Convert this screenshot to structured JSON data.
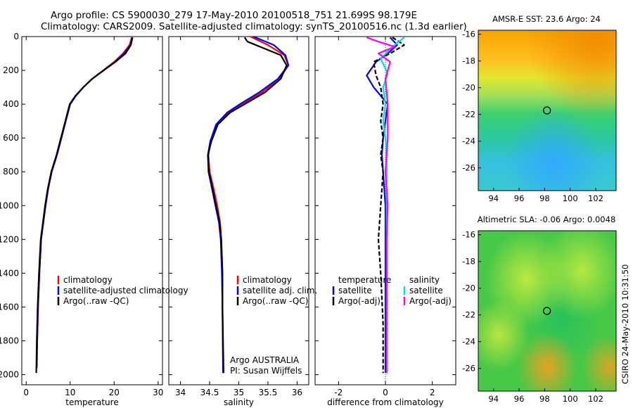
{
  "header": {
    "line1": "Argo profile: CS 5900030_279 17-May-2010 20100518_751 21.699S 98.179E",
    "line2": "Climatology: CARS2009. Satellite-adjusted climatology: synTS_20100516.nc (1.3d earlier)"
  },
  "colors": {
    "climatology": "#ff0000",
    "satellite": "#0000ff",
    "argo": "#000000",
    "sal_satellite": "#00e0e0",
    "sal_argo": "#ff00ff"
  },
  "chart_data": [
    {
      "type": "line",
      "xlabel": "temperature",
      "xlim": [
        -1,
        31
      ],
      "ylim": [
        2060,
        0
      ],
      "xticks": [
        "0",
        "10",
        "20",
        "30"
      ],
      "xtick_values": [
        0,
        10,
        20,
        30
      ],
      "yticks": [
        "0",
        "200",
        "400",
        "600",
        "800",
        "1000",
        "1200",
        "1400",
        "1600",
        "1800",
        "2000"
      ],
      "ytick_values": [
        0,
        200,
        400,
        600,
        800,
        1000,
        1200,
        1400,
        1600,
        1800,
        2000
      ],
      "legend": [
        "climatology",
        "satellite-adjusted climatology",
        "Argo(..raw -QC)"
      ],
      "series": [
        {
          "name": "climatology",
          "color": "#ff0000",
          "x": [
            24.0,
            23.5,
            22.0,
            20.0,
            17.5,
            15.0,
            13.0,
            11.3,
            10.0,
            9.0,
            8.0,
            7.0,
            5.8,
            5.0,
            4.4,
            3.9,
            3.4,
            3.0,
            2.7,
            2.5,
            2.4
          ],
          "y": [
            5,
            50,
            100,
            150,
            200,
            250,
            300,
            350,
            400,
            500,
            600,
            700,
            800,
            900,
            1000,
            1100,
            1200,
            1400,
            1600,
            1800,
            1950
          ]
        },
        {
          "name": "satellite-adjusted climatology",
          "color": "#0000ff",
          "x": [
            24.1,
            23.7,
            22.3,
            20.2,
            17.6,
            15.0,
            13.0,
            11.3,
            10.0,
            9.0,
            8.0,
            7.0,
            5.8,
            5.0,
            4.4,
            3.9,
            3.4,
            3.0,
            2.7,
            2.5,
            2.4
          ],
          "y": [
            5,
            50,
            100,
            150,
            200,
            250,
            300,
            350,
            400,
            500,
            600,
            700,
            800,
            900,
            1000,
            1100,
            1200,
            1400,
            1600,
            1800,
            1960
          ]
        },
        {
          "name": "Argo(..raw -QC)",
          "color": "#000000",
          "x": [
            24.2,
            23.8,
            22.6,
            20.3,
            17.6,
            15.0,
            13.0,
            11.2,
            9.9,
            8.9,
            7.9,
            6.9,
            5.7,
            4.9,
            4.3,
            3.8,
            3.3,
            2.9,
            2.6,
            2.4,
            2.3
          ],
          "y": [
            5,
            50,
            100,
            150,
            200,
            250,
            300,
            350,
            400,
            500,
            600,
            700,
            800,
            900,
            1000,
            1100,
            1200,
            1400,
            1600,
            1800,
            1990
          ]
        }
      ]
    },
    {
      "type": "line",
      "xlabel": "salinity",
      "xlim": [
        33.8,
        36.2
      ],
      "ylim": [
        2060,
        0
      ],
      "xticks": [
        "34",
        "34.5",
        "35",
        "35.5",
        "36"
      ],
      "xtick_values": [
        34,
        34.5,
        35,
        35.5,
        36
      ],
      "legend": [
        "climatology",
        "satellite adj. clim.",
        "Argo(..raw -QC)"
      ],
      "annotation": [
        "Argo AUSTRALIA",
        "PI: Susan Wijffels"
      ],
      "series": [
        {
          "name": "climatology",
          "color": "#ff0000",
          "x": [
            35.2,
            35.5,
            35.78,
            35.85,
            35.7,
            35.4,
            35.05,
            34.82,
            34.62,
            34.52,
            34.48,
            34.5,
            34.57,
            34.63,
            34.68,
            34.7,
            34.72,
            34.72,
            34.73
          ],
          "y": [
            0,
            50,
            110,
            170,
            250,
            330,
            400,
            450,
            520,
            620,
            700,
            800,
            900,
            1000,
            1100,
            1200,
            1400,
            1600,
            1880
          ]
        },
        {
          "name": "satellite adj. clim.",
          "color": "#0000ff",
          "x": [
            35.25,
            35.6,
            35.8,
            35.85,
            35.67,
            35.35,
            35.02,
            34.8,
            34.61,
            34.51,
            34.47,
            34.48,
            34.54,
            34.6,
            34.66,
            34.69,
            34.71,
            34.72,
            34.73
          ],
          "y": [
            0,
            50,
            110,
            170,
            250,
            330,
            400,
            450,
            520,
            620,
            700,
            800,
            900,
            1000,
            1100,
            1200,
            1400,
            1600,
            1990
          ]
        },
        {
          "name": "Argo(..raw -QC)",
          "color": "#000000",
          "x": [
            35.1,
            35.15,
            35.72,
            35.82,
            35.72,
            35.45,
            35.1,
            34.85,
            34.64,
            34.53,
            34.47,
            34.49,
            34.55,
            34.61,
            34.67,
            34.7,
            34.72,
            34.72,
            34.74
          ],
          "y": [
            5,
            30,
            110,
            170,
            250,
            330,
            400,
            450,
            520,
            620,
            700,
            800,
            900,
            1000,
            1100,
            1200,
            1400,
            1600,
            1990
          ]
        }
      ]
    },
    {
      "type": "line",
      "xlabel": "difference from climatology",
      "xlim": [
        -3,
        3
      ],
      "ylim": [
        2060,
        0
      ],
      "xticks": [
        "-2",
        "0",
        "2"
      ],
      "xtick_values": [
        -2,
        0,
        2
      ],
      "legend_left": [
        "temperature",
        "satellite",
        "Argo(-adj)"
      ],
      "legend_right": [
        "salinity",
        "satellite",
        "Argo(-adj)"
      ],
      "series": [
        {
          "name": "temperature satellite",
          "color": "#0000ff",
          "x": [
            0.2,
            0.5,
            0.1,
            -0.4,
            -0.8,
            -0.5,
            0.1,
            0.0,
            -0.1,
            -0.15,
            -0.1,
            -0.05,
            0.0,
            0.0,
            0.0,
            0.0,
            0.0
          ],
          "y": [
            5,
            50,
            100,
            150,
            230,
            300,
            400,
            500,
            600,
            700,
            800,
            900,
            1000,
            1200,
            1400,
            1700,
            1990
          ]
        },
        {
          "name": "temperature Argo(-adj)",
          "color": "#000000",
          "x": [
            0.3,
            0.8,
            0.2,
            -0.5,
            -0.4,
            -0.2,
            -0.1,
            -0.2,
            -0.1,
            -0.2,
            -0.1,
            -0.15,
            -0.2,
            -0.3,
            -0.2,
            -0.1,
            -0.1
          ],
          "y": [
            5,
            50,
            100,
            150,
            230,
            300,
            400,
            500,
            600,
            700,
            800,
            900,
            1000,
            1200,
            1400,
            1700,
            1990
          ]
        },
        {
          "name": "salinity satellite",
          "color": "#00e0e0",
          "x": [
            0.8,
            0.3,
            -0.2,
            0.1,
            -0.1,
            0.0,
            -0.1,
            0.0,
            0.05,
            0.05,
            0.05,
            0.05,
            0.05,
            0.05,
            0.05
          ],
          "y": [
            5,
            60,
            130,
            220,
            300,
            400,
            500,
            600,
            700,
            800,
            1000,
            1200,
            1400,
            1700,
            1990
          ]
        },
        {
          "name": "salinity Argo(-adj)",
          "color": "#ff00ff",
          "x": [
            -0.8,
            -0.3,
            0.4,
            -0.3,
            0.2,
            0.0,
            0.1,
            0.1,
            0.0,
            0.1,
            0.05,
            0.05,
            0.05,
            0.05
          ],
          "y": [
            5,
            30,
            60,
            100,
            150,
            250,
            400,
            600,
            800,
            1000,
            1200,
            1400,
            1700,
            1990
          ]
        }
      ]
    }
  ],
  "maps": [
    {
      "title": "AMSR-E SST: 23.6 Argo: 24",
      "xticks": [
        "94",
        "96",
        "98",
        "100",
        "102"
      ],
      "xtick_values": [
        94,
        96,
        98,
        100,
        102
      ],
      "yticks": [
        "-16",
        "-18",
        "-20",
        "-22",
        "-24",
        "-26"
      ],
      "ytick_values": [
        -16,
        -18,
        -20,
        -22,
        -24,
        -26
      ],
      "xlim": [
        92.8,
        103.6
      ],
      "ylim": [
        -15.7,
        -27.7
      ],
      "marker": {
        "lon": 98.18,
        "lat": -21.7
      }
    },
    {
      "title": "Altimetric SLA: -0.06 Argo: 0.0048",
      "xticks": [
        "94",
        "96",
        "98",
        "100",
        "102"
      ],
      "xtick_values": [
        94,
        96,
        98,
        100,
        102
      ],
      "yticks": [
        "-16",
        "-18",
        "-20",
        "-22",
        "-24",
        "-26"
      ],
      "ytick_values": [
        -16,
        -18,
        -20,
        -22,
        -24,
        -26
      ],
      "xlim": [
        92.8,
        103.6
      ],
      "ylim": [
        -15.7,
        -27.7
      ],
      "marker": {
        "lon": 98.18,
        "lat": -21.7
      }
    }
  ],
  "credit": "CSIRO 24-May-2010 10:31:50"
}
